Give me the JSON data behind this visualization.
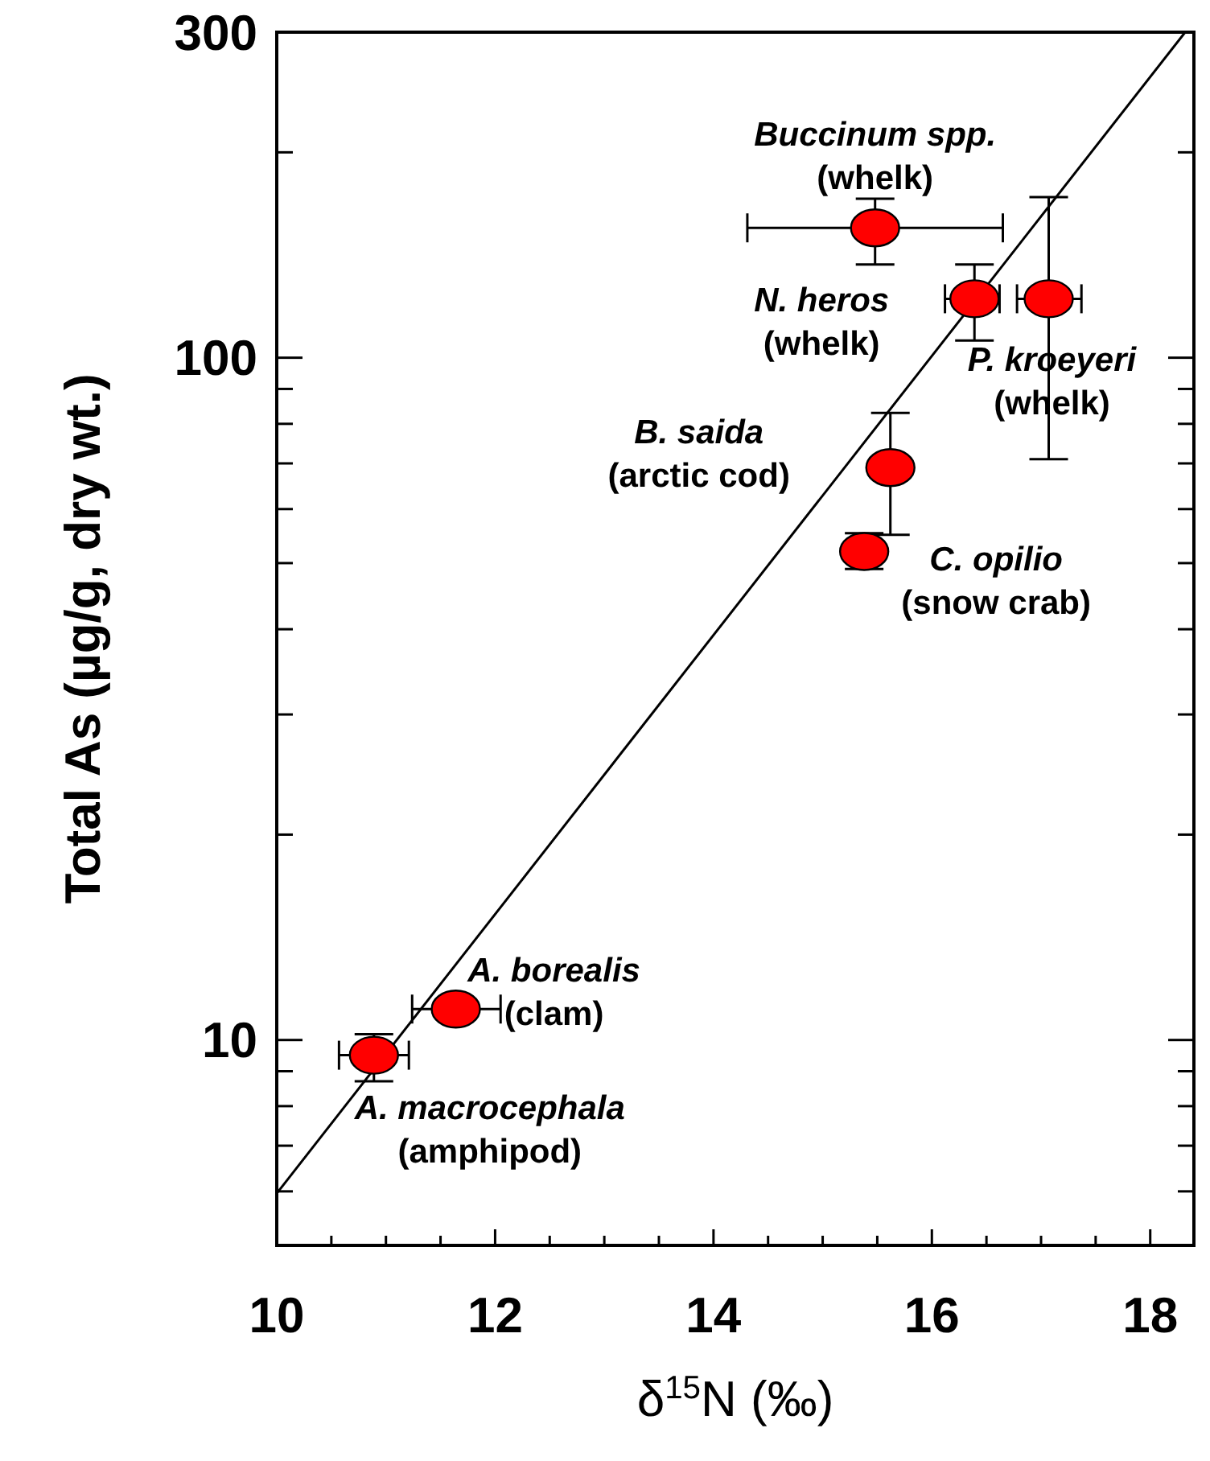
{
  "chart_data": {
    "type": "scatter",
    "xlabel": "δ$^{15}$N (‰)",
    "ylabel": "Total As (µg/g, dry wt.)",
    "log": "y",
    "xlim": [
      10,
      18.4
    ],
    "xticks": [
      10,
      {
        "value": 10.5,
        "label": null
      },
      {
        "value": 11,
        "label": null
      },
      {
        "value": 11.5,
        "label": null
      },
      12,
      {
        "value": 12.5,
        "label": null
      },
      {
        "value": 13,
        "label": null
      },
      {
        "value": 13.5,
        "label": null
      },
      14,
      {
        "value": 14.5,
        "label": null
      },
      {
        "value": 15,
        "label": null
      },
      {
        "value": 15.5,
        "label": null
      },
      16,
      {
        "value": 16.5,
        "label": null
      },
      {
        "value": 17,
        "label": null
      },
      {
        "value": 17.5,
        "label": null
      },
      18
    ],
    "ylim": [
      5,
      300
    ],
    "yticks": [
      {
        "value": 6,
        "label": null
      },
      {
        "value": 7,
        "label": null
      },
      {
        "value": 8,
        "label": null
      },
      {
        "value": 9,
        "label": null
      },
      10,
      {
        "value": 20,
        "label": null
      },
      {
        "value": 30,
        "label": null
      },
      {
        "value": 40,
        "label": null
      },
      {
        "value": 50,
        "label": null
      },
      {
        "value": 60,
        "label": null
      },
      {
        "value": 70,
        "label": null
      },
      {
        "value": 80,
        "label": null
      },
      {
        "value": 90,
        "label": null
      },
      100,
      {
        "value": 200,
        "label": null
      },
      300
    ],
    "grid": false,
    "series": [
      {
        "color": "#ff0000",
        "marker": "circle",
        "x": [
          10.89,
          11.64,
          15.48,
          16.39,
          17.07,
          15.62,
          15.38
        ],
        "values": [
          9.5,
          11.1,
          155,
          122,
          122,
          69,
          52
        ],
        "errors": [
          [
            8.7,
            10.2
          ],
          null,
          [
            137,
            171
          ],
          [
            106,
            137
          ],
          [
            71,
            172
          ],
          [
            55,
            83
          ],
          [
            49,
            55.3
          ]
        ],
        "xerrors": [
          [
            10.57,
            11.21
          ],
          [
            11.24,
            12.05
          ],
          [
            14.31,
            16.65
          ],
          [
            16.12,
            16.62
          ],
          [
            16.78,
            17.37
          ],
          null,
          null
        ]
      },
      {
        "type": "line",
        "color": "#000000",
        "line_style": "solid",
        "x": [
          10,
          18.32
        ],
        "values": [
          5.96,
          300
        ]
      }
    ],
    "annotations": [
      "A. macrocephala\n(amphipod)",
      "A. borealis\n(clam)",
      "Buccinum spp.\n(whelk)",
      "N. heros\n(whelk)",
      "P. kroeyeri\n(whelk)",
      "B. saida\n(arctic cod)",
      "C. opilio\n(snow crab)"
    ]
  }
}
